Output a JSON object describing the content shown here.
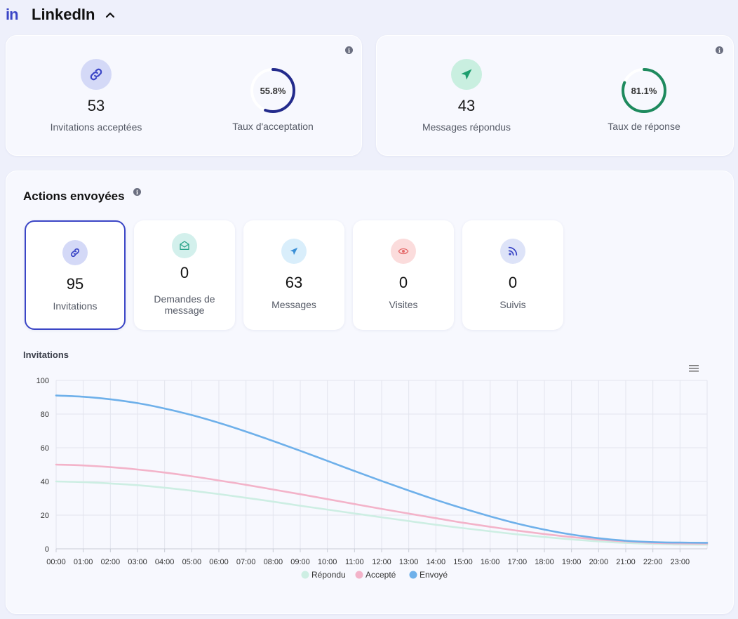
{
  "header": {
    "logo": "in",
    "title": "LinkedIn"
  },
  "colors": {
    "accent": "#3b46c6",
    "green": "#1e8a5e",
    "repondu": "#cdeee3",
    "accepte": "#f3b3c9",
    "envoye": "#6eb0ea"
  },
  "summary_left": {
    "invitations_accepted": {
      "value": "53",
      "label": "Invitations acceptées"
    },
    "acceptance_rate": {
      "value": "55.8%",
      "percent": 55.8,
      "label": "Taux d'acceptation"
    }
  },
  "summary_right": {
    "messages_answered": {
      "value": "43",
      "label": "Messages répondus"
    },
    "response_rate": {
      "value": "81.1%",
      "percent": 81.1,
      "label": "Taux de réponse"
    }
  },
  "actions": {
    "title": "Actions envoyées",
    "items": [
      {
        "value": "95",
        "label": "Invitations",
        "icon": "link-icon"
      },
      {
        "value": "0",
        "label": "Demandes de message",
        "icon": "envelope-icon"
      },
      {
        "value": "63",
        "label": "Messages",
        "icon": "send-icon"
      },
      {
        "value": "0",
        "label": "Visites",
        "icon": "eye-icon"
      },
      {
        "value": "0",
        "label": "Suivis",
        "icon": "rss-icon"
      }
    ]
  },
  "chart_data": {
    "type": "line",
    "title": "Invitations",
    "x": [
      "00:00",
      "01:00",
      "02:00",
      "03:00",
      "04:00",
      "05:00",
      "06:00",
      "07:00",
      "08:00",
      "09:00",
      "10:00",
      "11:00",
      "12:00",
      "13:00",
      "14:00",
      "15:00",
      "16:00",
      "17:00",
      "18:00",
      "19:00",
      "20:00",
      "21:00",
      "22:00",
      "23:00"
    ],
    "ylim": [
      0,
      100
    ],
    "yticks": [
      0,
      20,
      40,
      60,
      80,
      100
    ],
    "grid": true,
    "legend": "bottom-center",
    "series": [
      {
        "name": "Répondu",
        "color": "#cdeee3",
        "values": [
          40,
          39.6,
          38.8,
          37.8,
          36.3,
          34.5,
          32.5,
          30.3,
          28,
          25.6,
          23.3,
          21,
          18.7,
          16.5,
          14.3,
          12.3,
          10.4,
          8.6,
          7,
          5.6,
          4.4,
          3.5,
          2.9,
          2.5
        ]
      },
      {
        "name": "Accepté",
        "color": "#f3b3c9",
        "values": [
          50,
          49.5,
          48.5,
          47.1,
          45.3,
          43.1,
          40.6,
          38,
          35.2,
          32.4,
          29.5,
          26.6,
          23.7,
          20.9,
          18.2,
          15.5,
          13.1,
          10.8,
          8.8,
          7,
          5.5,
          4.4,
          3.6,
          3.2
        ]
      },
      {
        "name": "Envoyé",
        "color": "#6eb0ea",
        "values": [
          91,
          90.3,
          88.8,
          86.5,
          83.3,
          79.4,
          74.8,
          69.6,
          64,
          58.2,
          52.2,
          46.2,
          40.3,
          34.6,
          29.1,
          24,
          19.3,
          15,
          11.4,
          8.5,
          6.3,
          4.8,
          4,
          3.7
        ]
      }
    ]
  }
}
